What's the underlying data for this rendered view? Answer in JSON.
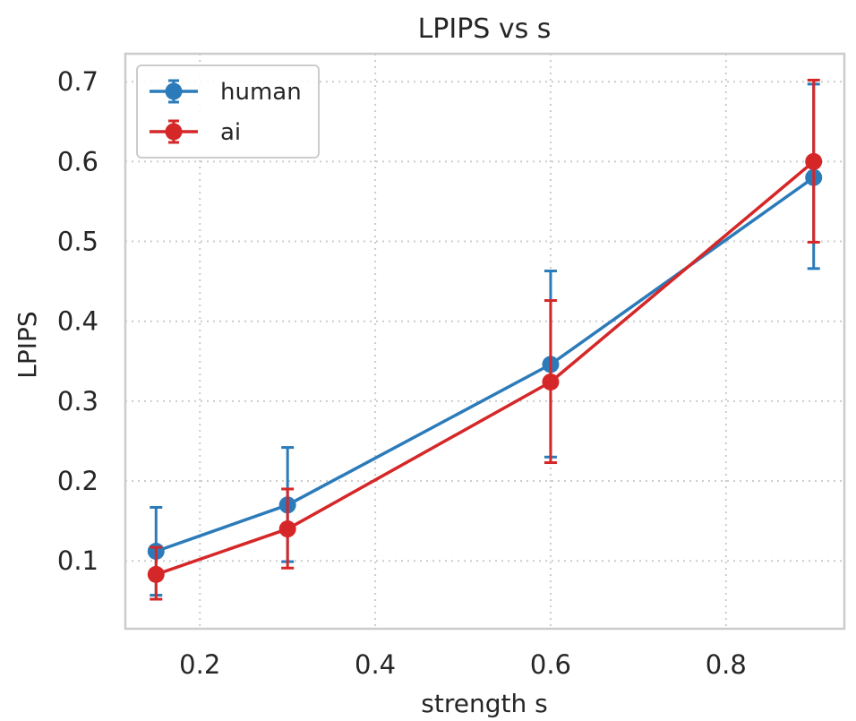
{
  "chart_data": {
    "type": "line",
    "title": "LPIPS vs s",
    "xlabel": "strength s",
    "ylabel": "LPIPS",
    "xlim": [
      0.115,
      0.935
    ],
    "ylim": [
      0.015,
      0.735
    ],
    "xticks": [
      {
        "value": 0.2,
        "label": "0.2"
      },
      {
        "value": 0.4,
        "label": "0.4"
      },
      {
        "value": 0.6,
        "label": "0.6"
      },
      {
        "value": 0.8,
        "label": "0.8"
      }
    ],
    "yticks": [
      {
        "value": 0.1,
        "label": "0.1"
      },
      {
        "value": 0.2,
        "label": "0.2"
      },
      {
        "value": 0.3,
        "label": "0.3"
      },
      {
        "value": 0.4,
        "label": "0.4"
      },
      {
        "value": 0.5,
        "label": "0.5"
      },
      {
        "value": 0.6,
        "label": "0.6"
      },
      {
        "value": 0.7,
        "label": "0.7"
      }
    ],
    "grid": true,
    "legend_position": "top-left",
    "series": [
      {
        "name": "human",
        "color": "#2b7bba",
        "points": [
          {
            "x": 0.15,
            "y": 0.112,
            "err_low": 0.057,
            "err_high": 0.167
          },
          {
            "x": 0.3,
            "y": 0.17,
            "err_low": 0.099,
            "err_high": 0.242
          },
          {
            "x": 0.6,
            "y": 0.346,
            "err_low": 0.23,
            "err_high": 0.463
          },
          {
            "x": 0.9,
            "y": 0.58,
            "err_low": 0.466,
            "err_high": 0.697
          }
        ]
      },
      {
        "name": "ai",
        "color": "#d62728",
        "points": [
          {
            "x": 0.15,
            "y": 0.083,
            "err_low": 0.052,
            "err_high": 0.117
          },
          {
            "x": 0.3,
            "y": 0.14,
            "err_low": 0.091,
            "err_high": 0.19
          },
          {
            "x": 0.6,
            "y": 0.324,
            "err_low": 0.223,
            "err_high": 0.426
          },
          {
            "x": 0.9,
            "y": 0.6,
            "err_low": 0.499,
            "err_high": 0.702
          }
        ]
      }
    ]
  }
}
